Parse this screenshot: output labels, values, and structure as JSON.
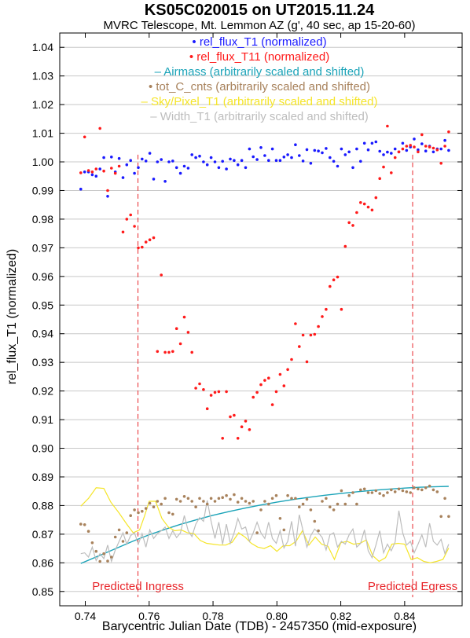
{
  "chart_data": {
    "type": "scatter",
    "title": "KS05C020015 on UT2015.11.24",
    "subtitle": "MVRC Telescope, Mt. Lemmon AZ (g', 40 sec, ap 15-20-60)",
    "xlabel": "Barycentric Julian Date (TDB) - 2457350 (mid-exposure)",
    "ylabel": "rel_flux_T1 (normalized)",
    "xlim": [
      0.732,
      0.858
    ],
    "ylim": [
      0.845,
      1.045
    ],
    "xticks": [
      "0.74",
      "0.76",
      "0.78",
      "0.80",
      "0.82",
      "0.84"
    ],
    "yticks": [
      "0.85",
      "0.86",
      "0.87",
      "0.88",
      "0.89",
      "0.90",
      "0.91",
      "0.92",
      "0.93",
      "0.94",
      "0.95",
      "0.96",
      "0.97",
      "0.98",
      "0.99",
      "1.00",
      "1.01",
      "1.02",
      "1.03",
      "1.04"
    ],
    "grid": "horizontal",
    "legend_position": "top-center",
    "colors": {
      "t1": "#1a1aff",
      "t11": "#ff1a1a",
      "airmass": "#1aa3b8",
      "tot_c": "#a8825c",
      "sky": "#f5e52a",
      "width": "#bdbdbd",
      "ingress": "#e8262b"
    },
    "legend": [
      {
        "key": "t1",
        "marker": "•",
        "label": "rel_flux_T1 (normalized)"
      },
      {
        "key": "t11",
        "marker": "•",
        "label": "rel_flux_T11 (normalized)"
      },
      {
        "key": "airmass",
        "marker": "–",
        "label": "Airmass (arbitrarily scaled and shifted)"
      },
      {
        "key": "tot_c",
        "marker": "•",
        "label": "tot_C_cnts (arbitrarily scaled and shifted)"
      },
      {
        "key": "sky",
        "marker": "–",
        "label": "Sky/Pixel_T1 (arbitrarily scaled and shifted)"
      },
      {
        "key": "width",
        "marker": "–",
        "label": "Width_T1 (arbitrarily scaled and shifted)"
      }
    ],
    "annotations": [
      {
        "label": "Predicted Ingress",
        "x": 0.7565
      },
      {
        "label": "Predicted Egress",
        "x": 0.8425
      }
    ],
    "series": [
      {
        "name": "rel_flux_T1 (normalized)",
        "key": "t1",
        "kind": "scatter",
        "x": [
          0.7386,
          0.7398,
          0.741,
          0.7422,
          0.7434,
          0.7446,
          0.7458,
          0.747,
          0.7482,
          0.7494,
          0.7506,
          0.7518,
          0.753,
          0.7542,
          0.7554,
          0.7566,
          0.7578,
          0.759,
          0.7602,
          0.7614,
          0.7626,
          0.7638,
          0.765,
          0.7662,
          0.7674,
          0.7686,
          0.7698,
          0.771,
          0.7722,
          0.7734,
          0.7746,
          0.7758,
          0.777,
          0.7782,
          0.7794,
          0.7806,
          0.7818,
          0.783,
          0.7842,
          0.7854,
          0.7866,
          0.7878,
          0.789,
          0.7902,
          0.7914,
          0.7926,
          0.7938,
          0.795,
          0.7962,
          0.7974,
          0.7986,
          0.7998,
          0.801,
          0.8022,
          0.8034,
          0.8046,
          0.8058,
          0.807,
          0.8082,
          0.8094,
          0.8106,
          0.8118,
          0.813,
          0.8142,
          0.8154,
          0.8166,
          0.8178,
          0.819,
          0.8202,
          0.8214,
          0.8226,
          0.8238,
          0.825,
          0.8262,
          0.8274,
          0.8286,
          0.8298,
          0.831,
          0.8322,
          0.8334,
          0.8346,
          0.8358,
          0.837,
          0.8382,
          0.8394,
          0.8406,
          0.8418,
          0.843,
          0.8442,
          0.8454,
          0.8466,
          0.8478,
          0.849,
          0.8502,
          0.8514,
          0.8526,
          0.8538
        ],
        "y": [
          0.9905,
          0.9965,
          0.9965,
          0.9955,
          0.995,
          0.9975,
          1.0015,
          0.988,
          1.0017,
          0.9965,
          1.0012,
          0.9945,
          0.999,
          1.0005,
          0.996,
          0.998,
          1.001,
          1.0003,
          1.003,
          0.994,
          1.0,
          1.0008,
          0.9932,
          1.0,
          1.0003,
          0.998,
          0.996,
          0.9985,
          0.9978,
          1.0025,
          1.0015,
          1.002,
          1.0,
          0.999,
          1.0015,
          1.0,
          0.998,
          1.0002,
          0.9975,
          1.001,
          1.0005,
          0.999,
          1.0005,
          0.998,
          1.0045,
          1.0018,
          1.0008,
          1.005,
          1.0022,
          1.0005,
          1.0045,
          1.0005,
          1.0005,
          1.0017,
          1.0025,
          1.0015,
          1.006,
          1.0022,
          1.0003,
          1.0043,
          0.9995,
          1.004,
          1.0038,
          1.0032,
          1.0047,
          1.0015,
          1.0002,
          0.9985,
          1.0045,
          1.0025,
          1.0035,
          0.998,
          1.0045,
          1.0002,
          1.0065,
          1.0042,
          1.0065,
          1.007,
          1.0037,
          1.0025,
          1.0034,
          1.003,
          1.0045,
          1.0035,
          1.0065,
          1.004,
          1.0052,
          1.008,
          1.0042,
          1.0063,
          1.0038,
          1.0055,
          1.0035,
          1.0045,
          1.0045,
          1.0075,
          1.004
        ]
      },
      {
        "name": "rel_flux_T11 (normalized)",
        "key": "t11",
        "kind": "scatter",
        "x": [
          0.7386,
          0.7398,
          0.741,
          0.7422,
          0.7434,
          0.7446,
          0.7458,
          0.747,
          0.7482,
          0.7494,
          0.7506,
          0.7518,
          0.753,
          0.7542,
          0.7554,
          0.7566,
          0.7578,
          0.759,
          0.7602,
          0.7614,
          0.7626,
          0.7638,
          0.765,
          0.7662,
          0.7674,
          0.7686,
          0.7698,
          0.771,
          0.7722,
          0.7734,
          0.7746,
          0.7758,
          0.777,
          0.7782,
          0.7794,
          0.7806,
          0.7818,
          0.783,
          0.7842,
          0.7854,
          0.7866,
          0.7878,
          0.789,
          0.7902,
          0.7914,
          0.7926,
          0.7938,
          0.795,
          0.7962,
          0.7974,
          0.7986,
          0.7998,
          0.801,
          0.8022,
          0.8034,
          0.8046,
          0.8058,
          0.807,
          0.8082,
          0.8094,
          0.8106,
          0.8118,
          0.813,
          0.8142,
          0.8154,
          0.8166,
          0.8178,
          0.819,
          0.8202,
          0.8214,
          0.8226,
          0.8238,
          0.825,
          0.8262,
          0.8274,
          0.8286,
          0.8298,
          0.831,
          0.8322,
          0.8334,
          0.8346,
          0.8358,
          0.837,
          0.8382,
          0.8394,
          0.8406,
          0.8418,
          0.843,
          0.8442,
          0.8454,
          0.8466,
          0.8478,
          0.849,
          0.8502,
          0.8514,
          0.8526,
          0.8538
        ],
        "y": [
          0.9962,
          1.0087,
          0.997,
          0.9965,
          0.9975,
          1.0117,
          0.9968,
          0.99,
          0.9978,
          0.996,
          0.9985,
          0.9755,
          0.98,
          0.9815,
          0.9775,
          0.97,
          0.9702,
          0.972,
          0.9728,
          0.9735,
          0.9338,
          0.9605,
          0.9335,
          0.9335,
          0.9338,
          0.9418,
          0.9365,
          0.9458,
          0.9405,
          0.9335,
          0.921,
          0.9225,
          0.9205,
          0.9138,
          0.9185,
          0.9195,
          0.9198,
          0.9035,
          0.9198,
          0.911,
          0.9115,
          0.9035,
          0.9075,
          0.9095,
          0.9065,
          0.9178,
          0.9195,
          0.9222,
          0.9237,
          0.9245,
          0.9152,
          0.9198,
          0.9258,
          0.9218,
          0.9275,
          0.931,
          0.9435,
          0.9355,
          0.9395,
          0.9302,
          0.9395,
          0.9398,
          0.9425,
          0.946,
          0.9485,
          0.9565,
          0.9588,
          0.9598,
          0.9485,
          0.9705,
          0.9788,
          0.9778,
          0.9823,
          0.9858,
          0.9853,
          0.9842,
          0.9832,
          0.9875,
          0.9942,
          0.9982,
          1.0125,
          0.9962,
          1.0015,
          1.0035,
          1.0045,
          1.0055,
          1.0058,
          1.0052,
          1.0035,
          1.0095,
          1.0055,
          1.0052,
          1.0048,
          1.0042,
          0.9995,
          1.0055,
          1.0105
        ]
      },
      {
        "name": "Airmass (arbitrarily scaled and shifted)",
        "key": "airmass",
        "kind": "line",
        "x": [
          0.7386,
          0.745,
          0.75,
          0.755,
          0.76,
          0.765,
          0.77,
          0.775,
          0.78,
          0.785,
          0.79,
          0.795,
          0.8,
          0.805,
          0.81,
          0.815,
          0.82,
          0.825,
          0.83,
          0.835,
          0.84,
          0.845,
          0.85,
          0.8538
        ],
        "y": [
          0.8598,
          0.8628,
          0.8652,
          0.8676,
          0.8698,
          0.8717,
          0.8735,
          0.8751,
          0.8766,
          0.8779,
          0.8791,
          0.8802,
          0.8812,
          0.8821,
          0.8829,
          0.8836,
          0.8842,
          0.8848,
          0.8853,
          0.8857,
          0.8861,
          0.8864,
          0.8866,
          0.8867
        ]
      },
      {
        "name": "tot_C_cnts (arbitrarily scaled and shifted)",
        "key": "tot_c",
        "kind": "scatter",
        "x": [
          0.7386,
          0.7398,
          0.741,
          0.7422,
          0.7434,
          0.7446,
          0.7458,
          0.747,
          0.7482,
          0.7494,
          0.7506,
          0.7518,
          0.753,
          0.7542,
          0.7554,
          0.7566,
          0.7578,
          0.759,
          0.7602,
          0.7614,
          0.7626,
          0.7638,
          0.765,
          0.7662,
          0.7674,
          0.7686,
          0.7698,
          0.771,
          0.7722,
          0.7734,
          0.7746,
          0.7758,
          0.777,
          0.7782,
          0.7794,
          0.7806,
          0.7818,
          0.783,
          0.7842,
          0.7854,
          0.7866,
          0.7878,
          0.789,
          0.7902,
          0.7914,
          0.7926,
          0.7938,
          0.795,
          0.7962,
          0.7974,
          0.7986,
          0.7998,
          0.801,
          0.8022,
          0.8034,
          0.8046,
          0.8058,
          0.807,
          0.8082,
          0.8094,
          0.8106,
          0.8118,
          0.813,
          0.8142,
          0.8154,
          0.8166,
          0.8178,
          0.819,
          0.8202,
          0.8214,
          0.8226,
          0.8238,
          0.825,
          0.8262,
          0.8274,
          0.8286,
          0.8298,
          0.831,
          0.8322,
          0.8334,
          0.8346,
          0.8358,
          0.837,
          0.8382,
          0.8394,
          0.8406,
          0.8418,
          0.843,
          0.8442,
          0.8454,
          0.8466,
          0.8478,
          0.849,
          0.8502,
          0.8514,
          0.8526,
          0.8538
        ],
        "y": [
          0.8735,
          0.8733,
          0.871,
          0.867,
          0.864,
          0.8605,
          0.8632,
          0.8606,
          0.862,
          0.869,
          0.8715,
          0.8675,
          0.8705,
          0.8765,
          0.8785,
          0.8775,
          0.878,
          0.879,
          0.8808,
          0.8795,
          0.8815,
          0.8805,
          0.8825,
          0.8775,
          0.877,
          0.8822,
          0.8815,
          0.8832,
          0.8825,
          0.8815,
          0.8795,
          0.8825,
          0.8815,
          0.8805,
          0.8825,
          0.8815,
          0.8825,
          0.8828,
          0.8835,
          0.8822,
          0.8838,
          0.8812,
          0.8825,
          0.8815,
          0.8808,
          0.8815,
          0.8705,
          0.8785,
          0.8815,
          0.8805,
          0.8825,
          0.8835,
          0.8755,
          0.8715,
          0.8835,
          0.8825,
          0.8825,
          0.8795,
          0.8805,
          0.8822,
          0.8785,
          0.8745,
          0.8712,
          0.8815,
          0.8825,
          0.8795,
          0.8785,
          0.8805,
          0.8852,
          0.8805,
          0.8835,
          0.8845,
          0.8805,
          0.8855,
          0.8858,
          0.8845,
          0.8845,
          0.8852,
          0.8842,
          0.8835,
          0.8845,
          0.8855,
          0.8848,
          0.8858,
          0.8852,
          0.8848,
          0.8845,
          0.8862,
          0.8858,
          0.8855,
          0.8862,
          0.8868,
          0.8855,
          0.8848,
          0.8762,
          0.8825,
          0.8762
        ]
      },
      {
        "name": "Sky/Pixel_T1 (arbitrarily scaled and shifted)",
        "key": "sky",
        "kind": "line",
        "x": [
          0.7386,
          0.741,
          0.7434,
          0.7458,
          0.748,
          0.7505,
          0.753,
          0.755,
          0.757,
          0.7585,
          0.76,
          0.762,
          0.764,
          0.766,
          0.768,
          0.77,
          0.772,
          0.774,
          0.776,
          0.778,
          0.78,
          0.782,
          0.784,
          0.786,
          0.788,
          0.79,
          0.792,
          0.794,
          0.796,
          0.798,
          0.8,
          0.802,
          0.804,
          0.806,
          0.808,
          0.81,
          0.812,
          0.814,
          0.816,
          0.818,
          0.82,
          0.822,
          0.824,
          0.826,
          0.828,
          0.83,
          0.832,
          0.834,
          0.836,
          0.838,
          0.84,
          0.842,
          0.844,
          0.846,
          0.848,
          0.85,
          0.852,
          0.8538
        ],
        "y": [
          0.8798,
          0.8825,
          0.8862,
          0.886,
          0.8812,
          0.8775,
          0.8735,
          0.8705,
          0.8715,
          0.8762,
          0.8815,
          0.8815,
          0.8755,
          0.8725,
          0.8712,
          0.8715,
          0.8705,
          0.8702,
          0.8678,
          0.8668,
          0.8665,
          0.8662,
          0.8662,
          0.8672,
          0.8705,
          0.869,
          0.8668,
          0.8655,
          0.865,
          0.866,
          0.864,
          0.866,
          0.866,
          0.8675,
          0.8712,
          0.8662,
          0.869,
          0.8665,
          0.8658,
          0.8612,
          0.867,
          0.8675,
          0.8665,
          0.8668,
          0.868,
          0.8625,
          0.8605,
          0.8618,
          0.8665,
          0.8668,
          0.8665,
          0.8612,
          0.8618,
          0.8605,
          0.86,
          0.8605,
          0.8612,
          0.8652
        ]
      },
      {
        "name": "Width_T1 (arbitrarily scaled and shifted)",
        "key": "width",
        "kind": "line",
        "x": [
          0.7386,
          0.7398,
          0.741,
          0.7422,
          0.7434,
          0.7446,
          0.7458,
          0.747,
          0.7482,
          0.7494,
          0.7506,
          0.7518,
          0.753,
          0.7542,
          0.7554,
          0.7566,
          0.7578,
          0.759,
          0.7602,
          0.7614,
          0.7626,
          0.7638,
          0.765,
          0.7662,
          0.7674,
          0.7686,
          0.7698,
          0.771,
          0.7722,
          0.7734,
          0.7746,
          0.7758,
          0.777,
          0.7782,
          0.7794,
          0.7806,
          0.7818,
          0.783,
          0.7842,
          0.7854,
          0.7866,
          0.7878,
          0.789,
          0.7902,
          0.7914,
          0.7926,
          0.7938,
          0.795,
          0.7962,
          0.7974,
          0.7986,
          0.7998,
          0.801,
          0.8022,
          0.8034,
          0.8046,
          0.8058,
          0.807,
          0.8082,
          0.8094,
          0.8106,
          0.8118,
          0.813,
          0.8142,
          0.8154,
          0.8166,
          0.8178,
          0.819,
          0.8202,
          0.8214,
          0.8226,
          0.8238,
          0.825,
          0.8262,
          0.8274,
          0.8286,
          0.8298,
          0.831,
          0.8322,
          0.8334,
          0.8346,
          0.8358,
          0.837,
          0.8382,
          0.8394,
          0.8406,
          0.8418,
          0.843,
          0.8442,
          0.8454,
          0.8466,
          0.8478,
          0.849,
          0.8502,
          0.8514,
          0.8526,
          0.8538
        ],
        "y": [
          0.8632,
          0.8635,
          0.862,
          0.8655,
          0.8608,
          0.8632,
          0.8615,
          0.8662,
          0.8605,
          0.8645,
          0.8675,
          0.8705,
          0.8665,
          0.8695,
          0.8705,
          0.8665,
          0.8702,
          0.8655,
          0.8715,
          0.8685,
          0.8702,
          0.8712,
          0.8725,
          0.8685,
          0.8712,
          0.8688,
          0.8705,
          0.8765,
          0.8712,
          0.8692,
          0.8735,
          0.8758,
          0.8745,
          0.8818,
          0.8745,
          0.8685,
          0.8742,
          0.8665,
          0.8735,
          0.8668,
          0.8705,
          0.8755,
          0.8718,
          0.8725,
          0.8675,
          0.8705,
          0.8742,
          0.8705,
          0.8685,
          0.8742,
          0.8685,
          0.8668,
          0.8712,
          0.8652,
          0.8675,
          0.8745,
          0.8658,
          0.8768,
          0.8712,
          0.8655,
          0.8695,
          0.8718,
          0.8705,
          0.8688,
          0.8645,
          0.8698,
          0.8705,
          0.8655,
          0.8675,
          0.8665,
          0.8698,
          0.8718,
          0.8655,
          0.8668,
          0.8715,
          0.8642,
          0.8618,
          0.8662,
          0.8712,
          0.8635,
          0.8665,
          0.8642,
          0.8672,
          0.8782,
          0.8705,
          0.8662,
          0.8675,
          0.8635,
          0.8665,
          0.8698,
          0.8655,
          0.8738,
          0.8675,
          0.8662,
          0.8682,
          0.8632,
          0.8665
        ]
      }
    ]
  }
}
